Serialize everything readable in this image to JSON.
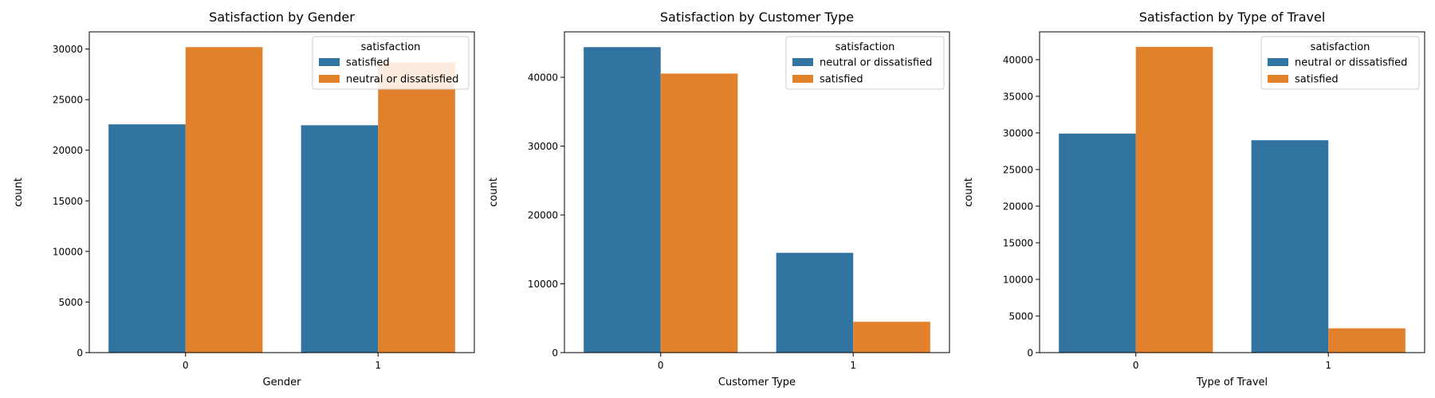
{
  "colors": {
    "blue": "#3274a1",
    "orange": "#e1812c"
  },
  "chart_data": [
    {
      "type": "bar",
      "title": "Satisfaction by Gender",
      "xlabel": "Gender",
      "ylabel": "count",
      "categories": [
        "0",
        "1"
      ],
      "ylim": [
        0,
        31700
      ],
      "yticks": [
        0,
        5000,
        10000,
        15000,
        20000,
        25000,
        30000
      ],
      "legend": {
        "title": "satisfaction",
        "placement": "top-right"
      },
      "series": [
        {
          "name": "satisfied",
          "color": "#3274a1",
          "values": [
            22560,
            22470
          ]
        },
        {
          "name": "neutral or dissatisfied",
          "color": "#e1812c",
          "values": [
            30190,
            28680
          ]
        }
      ]
    },
    {
      "type": "bar",
      "title": "Satisfaction by Customer Type",
      "xlabel": "Customer Type",
      "ylabel": "count",
      "categories": [
        "0",
        "1"
      ],
      "ylim": [
        0,
        46600
      ],
      "yticks": [
        0,
        10000,
        20000,
        30000,
        40000
      ],
      "legend": {
        "title": "satisfaction",
        "placement": "top-right"
      },
      "series": [
        {
          "name": "neutral or dissatisfied",
          "color": "#3274a1",
          "values": [
            44380,
            14500
          ]
        },
        {
          "name": "satisfied",
          "color": "#e1812c",
          "values": [
            40540,
            4480
          ]
        }
      ]
    },
    {
      "type": "bar",
      "title": "Satisfaction by Type of Travel",
      "xlabel": "Type of Travel",
      "ylabel": "count",
      "categories": [
        "0",
        "1"
      ],
      "ylim": [
        0,
        43800
      ],
      "yticks": [
        0,
        5000,
        10000,
        15000,
        20000,
        25000,
        30000,
        35000,
        40000
      ],
      "legend": {
        "title": "satisfaction",
        "placement": "top-right"
      },
      "series": [
        {
          "name": "neutral or dissatisfied",
          "color": "#3274a1",
          "values": [
            29910,
            29000
          ]
        },
        {
          "name": "satisfied",
          "color": "#e1812c",
          "values": [
            41750,
            3320
          ]
        }
      ]
    }
  ]
}
